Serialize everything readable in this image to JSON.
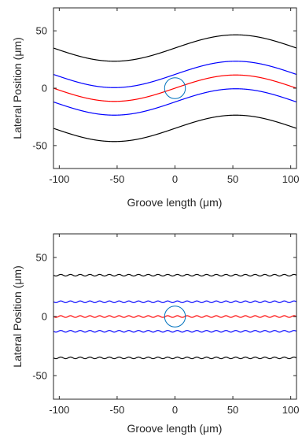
{
  "chart_data": [
    {
      "type": "line",
      "xlabel": "Groove length (μm)",
      "ylabel": "Lateral Position (μm)",
      "xlim": [
        -105,
        105
      ],
      "ylim": [
        -70,
        70
      ],
      "xticks": [
        -100,
        -50,
        0,
        50,
        100
      ],
      "yticks": [
        -50,
        0,
        50
      ],
      "grid": false,
      "series": [
        {
          "role": "outer-upper",
          "color": "#000000",
          "center": 35,
          "amplitude": 11.5,
          "period": 210
        },
        {
          "role": "inner-upper",
          "color": "#0000ff",
          "center": 12,
          "amplitude": 11.5,
          "period": 210
        },
        {
          "role": "centerline",
          "color": "#ff0000",
          "center": 0,
          "amplitude": 11.5,
          "period": 210
        },
        {
          "role": "inner-lower",
          "color": "#0000ff",
          "center": -12,
          "amplitude": 11.5,
          "period": 210
        },
        {
          "role": "outer-lower",
          "color": "#000000",
          "center": -35,
          "amplitude": 11.5,
          "period": 210
        }
      ],
      "circle": {
        "cx": 0,
        "cy": 0,
        "r": 9,
        "color": "#0072bd"
      }
    },
    {
      "type": "line",
      "xlabel": "Groove length (μm)",
      "ylabel": "Lateral Position (μm)",
      "xlim": [
        -105,
        105
      ],
      "ylim": [
        -70,
        70
      ],
      "xticks": [
        -100,
        -50,
        0,
        50,
        100
      ],
      "yticks": [
        -50,
        0,
        50
      ],
      "grid": false,
      "series": [
        {
          "role": "outer-upper",
          "color": "#000000",
          "center": 35,
          "amplitude": 0.7,
          "period": 8.4
        },
        {
          "role": "inner-upper",
          "color": "#0000ff",
          "center": 12.5,
          "amplitude": 0.7,
          "period": 8.4
        },
        {
          "role": "centerline",
          "color": "#ff0000",
          "center": 0,
          "amplitude": 0.7,
          "period": 8.4
        },
        {
          "role": "inner-lower",
          "color": "#0000ff",
          "center": -12.5,
          "amplitude": 0.7,
          "period": 8.4
        },
        {
          "role": "outer-lower",
          "color": "#000000",
          "center": -35,
          "amplitude": 0.7,
          "period": 8.4
        }
      ],
      "circle": {
        "cx": 0,
        "cy": 0,
        "r": 9,
        "color": "#0072bd"
      }
    }
  ]
}
